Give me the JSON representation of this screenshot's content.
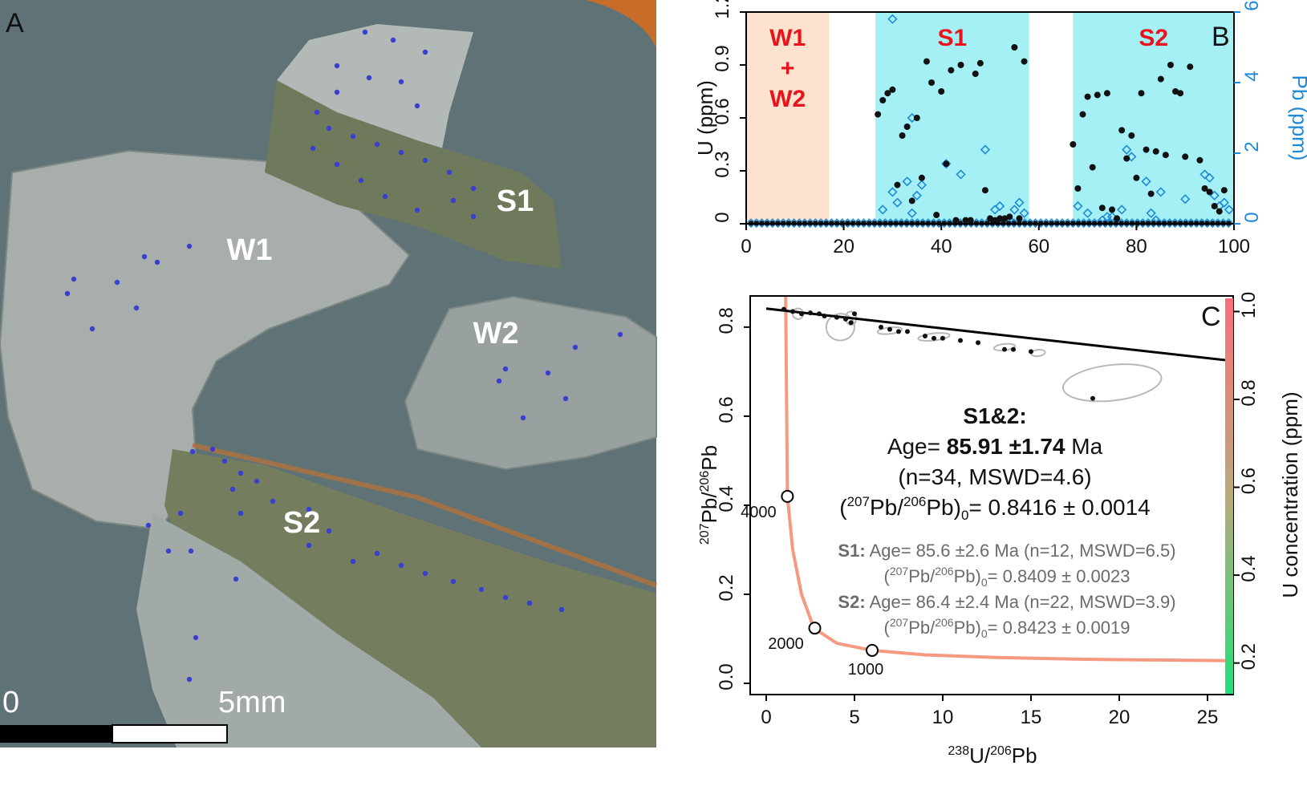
{
  "panel_a": {
    "label": "A",
    "region_labels": [
      "S1",
      "W1",
      "W2",
      "S2"
    ],
    "scale_bar": {
      "start_label": "0",
      "end_label": "5mm"
    },
    "colors": {
      "background": "#5f7376",
      "grain_light": "#a7aeab",
      "band_olive": "#6f7a5c",
      "spot": "#3b3fd0",
      "rim": "#c86c2a"
    }
  },
  "chart_data": [
    {
      "type": "scatter",
      "panel_label": "B",
      "title": "",
      "xlabel": "",
      "ylabel": "U (ppm)",
      "y2label": "Pb (ppm)",
      "xlim": [
        0,
        100
      ],
      "ylim": [
        0,
        1.2
      ],
      "y2lim": [
        0,
        6
      ],
      "x_ticks": [
        "0",
        "20",
        "40",
        "60",
        "80",
        "100"
      ],
      "y_ticks": [
        "0",
        "0.3",
        "0.6",
        "0.9",
        "1.2"
      ],
      "y2_ticks": [
        "0",
        "2",
        "4",
        "6"
      ],
      "regions": [
        {
          "label_lines": [
            "W1",
            "+",
            "W2"
          ],
          "x": [
            0,
            17
          ],
          "color": "#fde3cf"
        },
        {
          "label_lines": [
            "S1"
          ],
          "x": [
            26.5,
            58
          ],
          "color": "#a5f0f5"
        },
        {
          "label_lines": [
            "S2"
          ],
          "x": [
            67,
            100
          ],
          "color": "#a5f0f5"
        }
      ],
      "series": [
        {
          "axis": "left",
          "color": "#111111",
          "marker": "filled-circle",
          "points": [
            [
              27,
              0.62
            ],
            [
              28,
              0.7
            ],
            [
              29,
              0.74
            ],
            [
              30,
              0.76
            ],
            [
              31,
              0.22
            ],
            [
              32,
              0.5
            ],
            [
              33,
              0.55
            ],
            [
              34,
              0.13
            ],
            [
              35,
              0.6
            ],
            [
              36,
              0.26
            ],
            [
              37,
              0.92
            ],
            [
              38,
              0.8
            ],
            [
              39,
              0.05
            ],
            [
              40,
              0.75
            ],
            [
              41,
              0.34
            ],
            [
              42,
              0.87
            ],
            [
              43,
              0.02
            ],
            [
              44,
              0.9
            ],
            [
              45,
              0.02
            ],
            [
              46,
              0.02
            ],
            [
              47,
              0.85
            ],
            [
              48,
              0.91
            ],
            [
              49,
              0.19
            ],
            [
              50,
              0.03
            ],
            [
              51,
              0.02
            ],
            [
              52,
              0.03
            ],
            [
              53,
              0.03
            ],
            [
              54,
              0.04
            ],
            [
              55,
              1.0
            ],
            [
              56,
              0.03
            ],
            [
              57,
              0.92
            ],
            [
              67,
              0.45
            ],
            [
              68,
              0.2
            ],
            [
              69,
              0.62
            ],
            [
              70,
              0.72
            ],
            [
              71,
              0.32
            ],
            [
              72,
              0.73
            ],
            [
              73,
              0.09
            ],
            [
              74,
              0.74
            ],
            [
              75,
              0.08
            ],
            [
              76,
              0.03
            ],
            [
              77,
              0.53
            ],
            [
              78,
              0.37
            ],
            [
              79,
              0.5
            ],
            [
              80,
              0.26
            ],
            [
              81,
              0.74
            ],
            [
              82,
              0.42
            ],
            [
              83,
              0.17
            ],
            [
              84,
              0.41
            ],
            [
              85,
              0.82
            ],
            [
              86,
              0.39
            ],
            [
              87,
              0.9
            ],
            [
              88,
              0.75
            ],
            [
              89,
              0.74
            ],
            [
              90,
              0.38
            ],
            [
              91,
              0.89
            ],
            [
              93,
              0.36
            ],
            [
              94,
              0.2
            ],
            [
              95,
              0.18
            ],
            [
              96,
              0.1
            ],
            [
              97,
              0.07
            ],
            [
              98,
              0.19
            ]
          ]
        },
        {
          "axis": "right",
          "color": "#1f8ad6",
          "marker": "open-diamond",
          "points": [
            [
              30,
              5.8
            ],
            [
              33,
              1.2
            ],
            [
              30,
              0.9
            ],
            [
              31,
              0.6
            ],
            [
              34,
              3.0
            ],
            [
              35,
              0.8
            ],
            [
              36,
              1.1
            ],
            [
              28,
              0.4
            ],
            [
              34,
              0.3
            ],
            [
              41,
              1.7
            ],
            [
              44,
              1.4
            ],
            [
              49,
              2.1
            ],
            [
              51,
              0.4
            ],
            [
              52,
              0.5
            ],
            [
              54,
              0.1
            ],
            [
              55,
              0.4
            ],
            [
              56,
              0.6
            ],
            [
              57,
              0.3
            ],
            [
              68,
              0.5
            ],
            [
              70,
              0.3
            ],
            [
              73,
              0.1
            ],
            [
              74,
              0.2
            ],
            [
              75,
              0.2
            ],
            [
              77,
              0.4
            ],
            [
              78,
              2.1
            ],
            [
              79,
              1.9
            ],
            [
              82,
              1.2
            ],
            [
              83,
              0.3
            ],
            [
              84,
              0.1
            ],
            [
              85,
              0.9
            ],
            [
              90,
              0.7
            ],
            [
              94,
              1.4
            ],
            [
              95,
              1.3
            ],
            [
              96,
              0.8
            ],
            [
              97,
              0.5
            ],
            [
              98,
              0.6
            ],
            [
              99,
              0.4
            ]
          ]
        }
      ]
    },
    {
      "type": "scatter",
      "panel_label": "C",
      "xlabel": "238U/206Pb",
      "ylabel": "207Pb/206Pb",
      "colorbar_label": "U concentration (ppm)",
      "xlim": [
        0,
        26
      ],
      "ylim": [
        0,
        0.87
      ],
      "x_ticks": [
        "0",
        "5",
        "10",
        "15",
        "20",
        "25"
      ],
      "y_ticks": [
        "0.0",
        "0.2",
        "0.4",
        "0.6",
        "0.8"
      ],
      "colorbar_ticks": [
        "0.2",
        "0.4",
        "0.6",
        "0.8",
        "1.0"
      ],
      "colorbar_range": [
        0.13,
        1.03
      ],
      "regression_line": [
        [
          0,
          0.8416
        ],
        [
          26,
          0.726
        ]
      ],
      "concordia": {
        "color": "#f59a80",
        "points": [
          [
            1.1,
            0.87
          ],
          [
            1.2,
            0.42
          ],
          [
            1.5,
            0.3
          ],
          [
            2,
            0.2
          ],
          [
            2.7,
            0.124
          ],
          [
            4,
            0.09
          ],
          [
            6,
            0.074
          ],
          [
            9,
            0.064
          ],
          [
            13,
            0.058
          ],
          [
            18,
            0.054
          ],
          [
            26,
            0.051
          ]
        ],
        "age_markers": [
          {
            "label": "4000",
            "x": 1.2,
            "y": 0.42
          },
          {
            "label": "2000",
            "x": 2.75,
            "y": 0.124
          },
          {
            "label": "1000",
            "x": 6.0,
            "y": 0.074
          }
        ]
      },
      "data_points": [
        [
          1,
          0.84
        ],
        [
          1.5,
          0.835
        ],
        [
          2,
          0.83
        ],
        [
          2.5,
          0.832
        ],
        [
          3,
          0.83
        ],
        [
          3.3,
          0.825
        ],
        [
          4,
          0.822
        ],
        [
          4.5,
          0.818
        ],
        [
          4.8,
          0.81
        ],
        [
          5,
          0.83
        ],
        [
          6.5,
          0.8
        ],
        [
          7,
          0.795
        ],
        [
          7.5,
          0.79
        ],
        [
          8,
          0.79
        ],
        [
          9,
          0.78
        ],
        [
          9.5,
          0.775
        ],
        [
          10,
          0.775
        ],
        [
          11,
          0.77
        ],
        [
          12,
          0.765
        ],
        [
          13.5,
          0.75
        ],
        [
          14,
          0.75
        ],
        [
          15,
          0.745
        ],
        [
          18.5,
          0.64
        ]
      ],
      "uncertainty_ellipses": [
        {
          "cx": 1.8,
          "cy": 0.83,
          "rx": 0.3,
          "ry": 0.012
        },
        {
          "cx": 4.2,
          "cy": 0.8,
          "rx": 0.8,
          "ry": 0.03
        },
        {
          "cx": 4.8,
          "cy": 0.82,
          "rx": 0.3,
          "ry": 0.015
        },
        {
          "cx": 7,
          "cy": 0.792,
          "rx": 0.7,
          "ry": 0.006
        },
        {
          "cx": 9.5,
          "cy": 0.778,
          "rx": 0.9,
          "ry": 0.008
        },
        {
          "cx": 13.5,
          "cy": 0.755,
          "rx": 0.6,
          "ry": 0.007
        },
        {
          "cx": 15.4,
          "cy": 0.742,
          "rx": 0.4,
          "ry": 0.006
        },
        {
          "cx": 19.6,
          "cy": 0.675,
          "rx": 2.8,
          "ry": 0.04
        }
      ],
      "annotations": {
        "main": {
          "title": "S1&2:",
          "age_prefix": "Age=",
          "age_value": "85.91 ±1.74",
          "age_unit": "Ma",
          "stats": "(n=34, MSWD=4.6)",
          "ratio": "= 0.8416 ± 0.0014"
        },
        "s1": {
          "label": "S1:",
          "age_text": "Age= 85.6 ±2.6 Ma (n=12, MSWD=6.5)",
          "ratio": "= 0.8409 ± 0.0023"
        },
        "s2": {
          "label": "S2:",
          "age_text": "Age= 86.4 ±2.4 Ma (n=22, MSWD=3.9)",
          "ratio": "= 0.8423 ± 0.0019"
        }
      }
    }
  ]
}
